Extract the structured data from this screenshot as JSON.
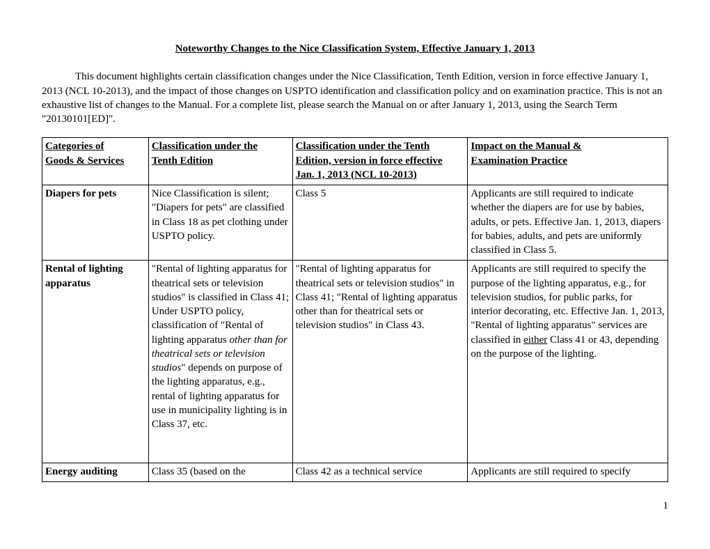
{
  "title": "Noteworthy Changes to the Nice Classification System, Effective January 1, 2013",
  "intro": "This document highlights certain classification changes under the Nice Classification, Tenth Edition, version in force effective January 1, 2013 (NCL 10-2013), and the impact of those changes on USPTO identification and classification policy and on examination practice. This is not an exhaustive list of changes to the Manual. For a complete list, please search the Manual on or after January 1, 2013, using the Search Term \"20130101[ED]\".",
  "headers": {
    "c1a": "Categories of",
    "c1b": "Goods & Services",
    "c2a": "Classification under the",
    "c2b": "Tenth Edition",
    "c3a": "Classification under the Tenth",
    "c3b": "Edition, version in force effective",
    "c3c": "Jan. 1, 2013 (NCL 10-2013)",
    "c4a": "Impact on the Manual &",
    "c4b": "Examination Practice"
  },
  "rows": [
    {
      "cat": "Diapers for pets",
      "old": "Nice Classification is silent; \"Diapers for pets\" are classified in Class 18 as pet clothing under USPTO policy.",
      "new": "Class 5",
      "impact": "Applicants are still required to indicate whether the diapers are for use by babies, adults, or pets. Effective Jan. 1, 2013, diapers for babies, adults, and pets are uniformly classified in Class 5."
    },
    {
      "cat": "Rental of lighting apparatus",
      "old_pre": "\"Rental of lighting apparatus for theatrical sets or television studios\" is classified in Class 41; Under USPTO policy, classification of \"Rental of lighting apparatus ",
      "old_italic": "other than for theatrical sets or television studios",
      "old_post": "\" depends on purpose of the lighting apparatus, e.g., rental of lighting apparatus for use in municipality lighting is in Class 37, etc.",
      "new": "\"Rental of lighting apparatus for theatrical sets or television studios\" in Class 41; \"Rental of lighting apparatus other than for theatrical sets or television studios\" in Class 43.",
      "impact_pre": "Applicants are still required to specify the purpose of the lighting apparatus, e.g., for television studios, for public parks, for interior decorating, etc. Effective Jan. 1, 2013, \"Rental of lighting apparatus\" services are classified in ",
      "impact_u": "either",
      "impact_post": " Class 41 or 43, depending on the purpose of the lighting."
    },
    {
      "cat": "Energy auditing",
      "old": "Class 35 (based on the",
      "new": "Class 42 as a technical service",
      "impact": "Applicants are still required to specify"
    }
  ],
  "page_num": "1"
}
